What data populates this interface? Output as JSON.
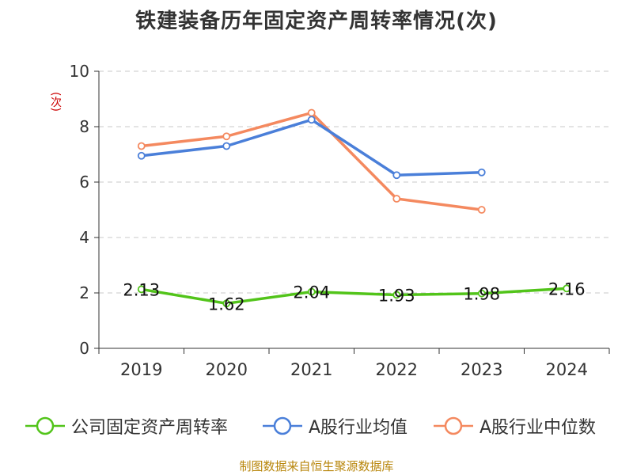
{
  "chart_data": {
    "type": "line",
    "title": "铁建装备历年固定资产周转率情况(次)",
    "ylabel": "(次)",
    "categories": [
      "2019",
      "2020",
      "2021",
      "2022",
      "2023",
      "2024"
    ],
    "ylim": [
      0,
      10
    ],
    "yticks": [
      0,
      2,
      4,
      6,
      8,
      10
    ],
    "grid": true,
    "legend_position": "bottom",
    "series": [
      {
        "name": "公司固定资产周转率",
        "color": "#52c41a",
        "values": [
          2.13,
          1.62,
          2.04,
          1.93,
          1.98,
          2.16
        ],
        "labels": true
      },
      {
        "name": "A股行业均值",
        "color": "#4a7fd9",
        "values": [
          6.95,
          7.3,
          8.25,
          6.25,
          6.35,
          null
        ],
        "labels": false
      },
      {
        "name": "A股行业中位数",
        "color": "#f4895f",
        "values": [
          7.3,
          7.65,
          8.5,
          5.4,
          5.0,
          null
        ],
        "labels": false
      }
    ]
  },
  "source": "制图数据来自恒生聚源数据库"
}
